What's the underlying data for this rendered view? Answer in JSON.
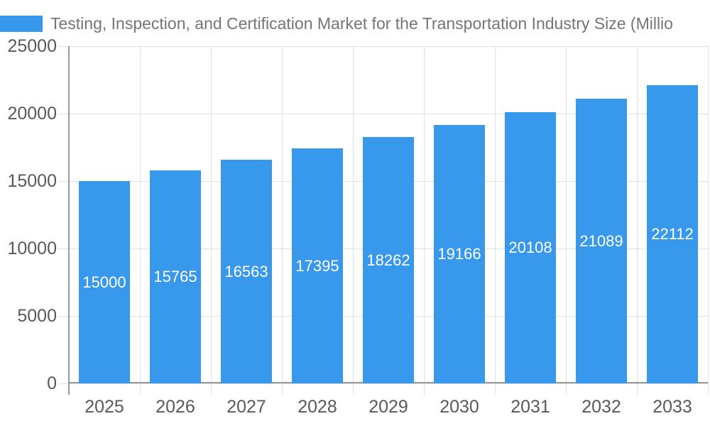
{
  "legend": {
    "label": "Testing, Inspection, and Certification Market for the Transportation Industry Size (Millio",
    "swatch_color": "#3898ec"
  },
  "chart_data": {
    "type": "bar",
    "title": "Testing, Inspection, and Certification Market for the Transportation Industry Size (Millio",
    "categories": [
      "2025",
      "2026",
      "2027",
      "2028",
      "2029",
      "2030",
      "2031",
      "2032",
      "2033"
    ],
    "values": [
      15000,
      15765,
      16563,
      17395,
      18262,
      19166,
      20108,
      21089,
      22112
    ],
    "y_ticks": [
      0,
      5000,
      10000,
      15000,
      20000,
      25000
    ],
    "ylim": [
      0,
      25000
    ],
    "xlabel": "",
    "ylabel": "",
    "grid": true,
    "legend_position": "top-left",
    "bar_color": "#3898ec",
    "value_label_color": "#ffffff"
  },
  "colors": {
    "background": "#ffffff",
    "axis": "#999999",
    "gridline": "#e0e0e0",
    "tick_label": "#595959",
    "legend_text": "#757575"
  }
}
